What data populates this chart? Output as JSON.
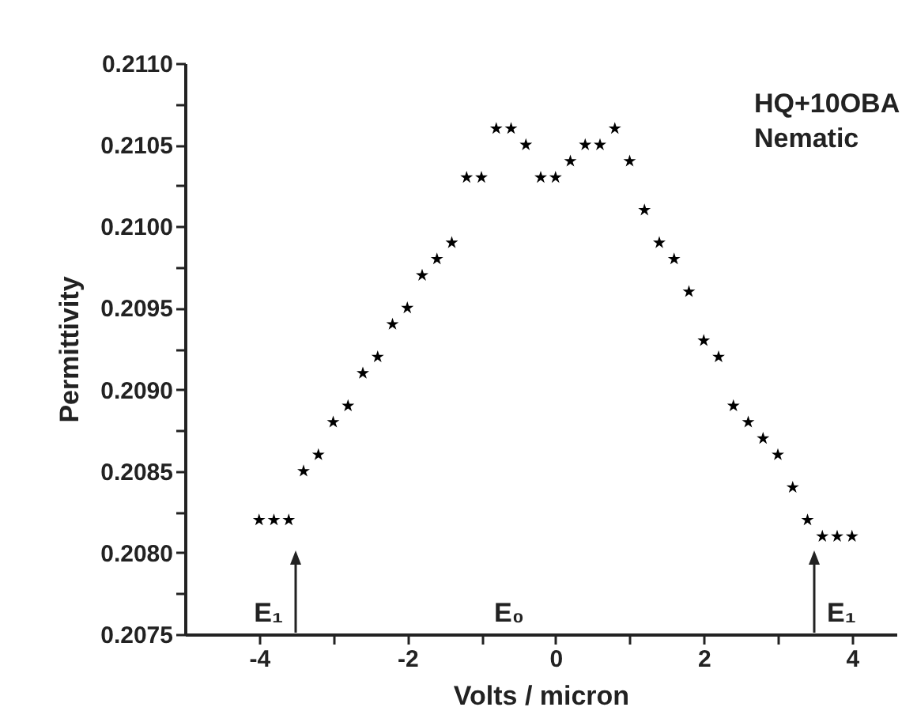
{
  "chart_data": {
    "type": "scatter",
    "xlabel": "Volts / micron",
    "ylabel": "Permittivity",
    "x": [
      -4.0,
      -3.8,
      -3.6,
      -3.4,
      -3.2,
      -3.0,
      -2.8,
      -2.6,
      -2.4,
      -2.2,
      -2.0,
      -1.8,
      -1.6,
      -1.4,
      -1.2,
      -1.0,
      -0.8,
      -0.6,
      -0.4,
      -0.2,
      0.0,
      0.2,
      0.4,
      0.6,
      0.8,
      1.0,
      1.2,
      1.4,
      1.6,
      1.8,
      2.0,
      2.2,
      2.4,
      2.6,
      2.8,
      3.0,
      3.2,
      3.4,
      3.6,
      3.8,
      4.0
    ],
    "series": [
      {
        "color": "#000000",
        "values": [
          0.2082,
          0.2082,
          0.2082,
          0.2085,
          0.2086,
          0.2088,
          0.2089,
          0.2091,
          0.2092,
          0.2094,
          0.2095,
          0.2097,
          0.2098,
          0.2099,
          0.2103,
          0.2103,
          0.2106,
          0.2106,
          0.2105,
          0.2103,
          0.2103,
          0.2104,
          0.2105,
          0.2105,
          0.2106,
          0.2104,
          0.2101,
          0.2099,
          0.2098,
          0.2096,
          0.2093,
          0.2092,
          0.2089,
          0.2088,
          0.2087,
          0.2086,
          0.2084,
          0.2082,
          0.2081,
          0.2081,
          0.2081
        ]
      }
    ],
    "marker": "star",
    "xlim": [
      -5,
      4.6
    ],
    "xticks": [
      -4,
      {
        "value": -3,
        "label": null
      },
      -2,
      {
        "value": -1,
        "label": null
      },
      0,
      {
        "value": 1,
        "label": null
      },
      2,
      {
        "value": 3,
        "label": null
      },
      4
    ],
    "ylim": [
      0.2075,
      0.211
    ],
    "yticks": [
      {
        "value": 0.2075,
        "label": "0.2075"
      },
      {
        "value": 0.20775,
        "label": null
      },
      {
        "value": 0.208,
        "label": "0.2080"
      },
      {
        "value": 0.20825,
        "label": null
      },
      {
        "value": 0.2085,
        "label": "0.2085"
      },
      {
        "value": 0.20875,
        "label": null
      },
      {
        "value": 0.209,
        "label": "0.2090"
      },
      {
        "value": 0.20925,
        "label": null
      },
      {
        "value": 0.2095,
        "label": "0.2095"
      },
      {
        "value": 0.20975,
        "label": null
      },
      {
        "value": 0.21,
        "label": "0.2100"
      },
      {
        "value": 0.21025,
        "label": null
      },
      {
        "value": 0.2105,
        "label": "0.2105"
      },
      {
        "value": 0.21075,
        "label": null
      },
      {
        "value": 0.211,
        "label": "0.2110"
      }
    ],
    "annotations": [
      "HQ+10OBA",
      "Nematic",
      "E₁",
      "E₀",
      "E₁"
    ]
  }
}
